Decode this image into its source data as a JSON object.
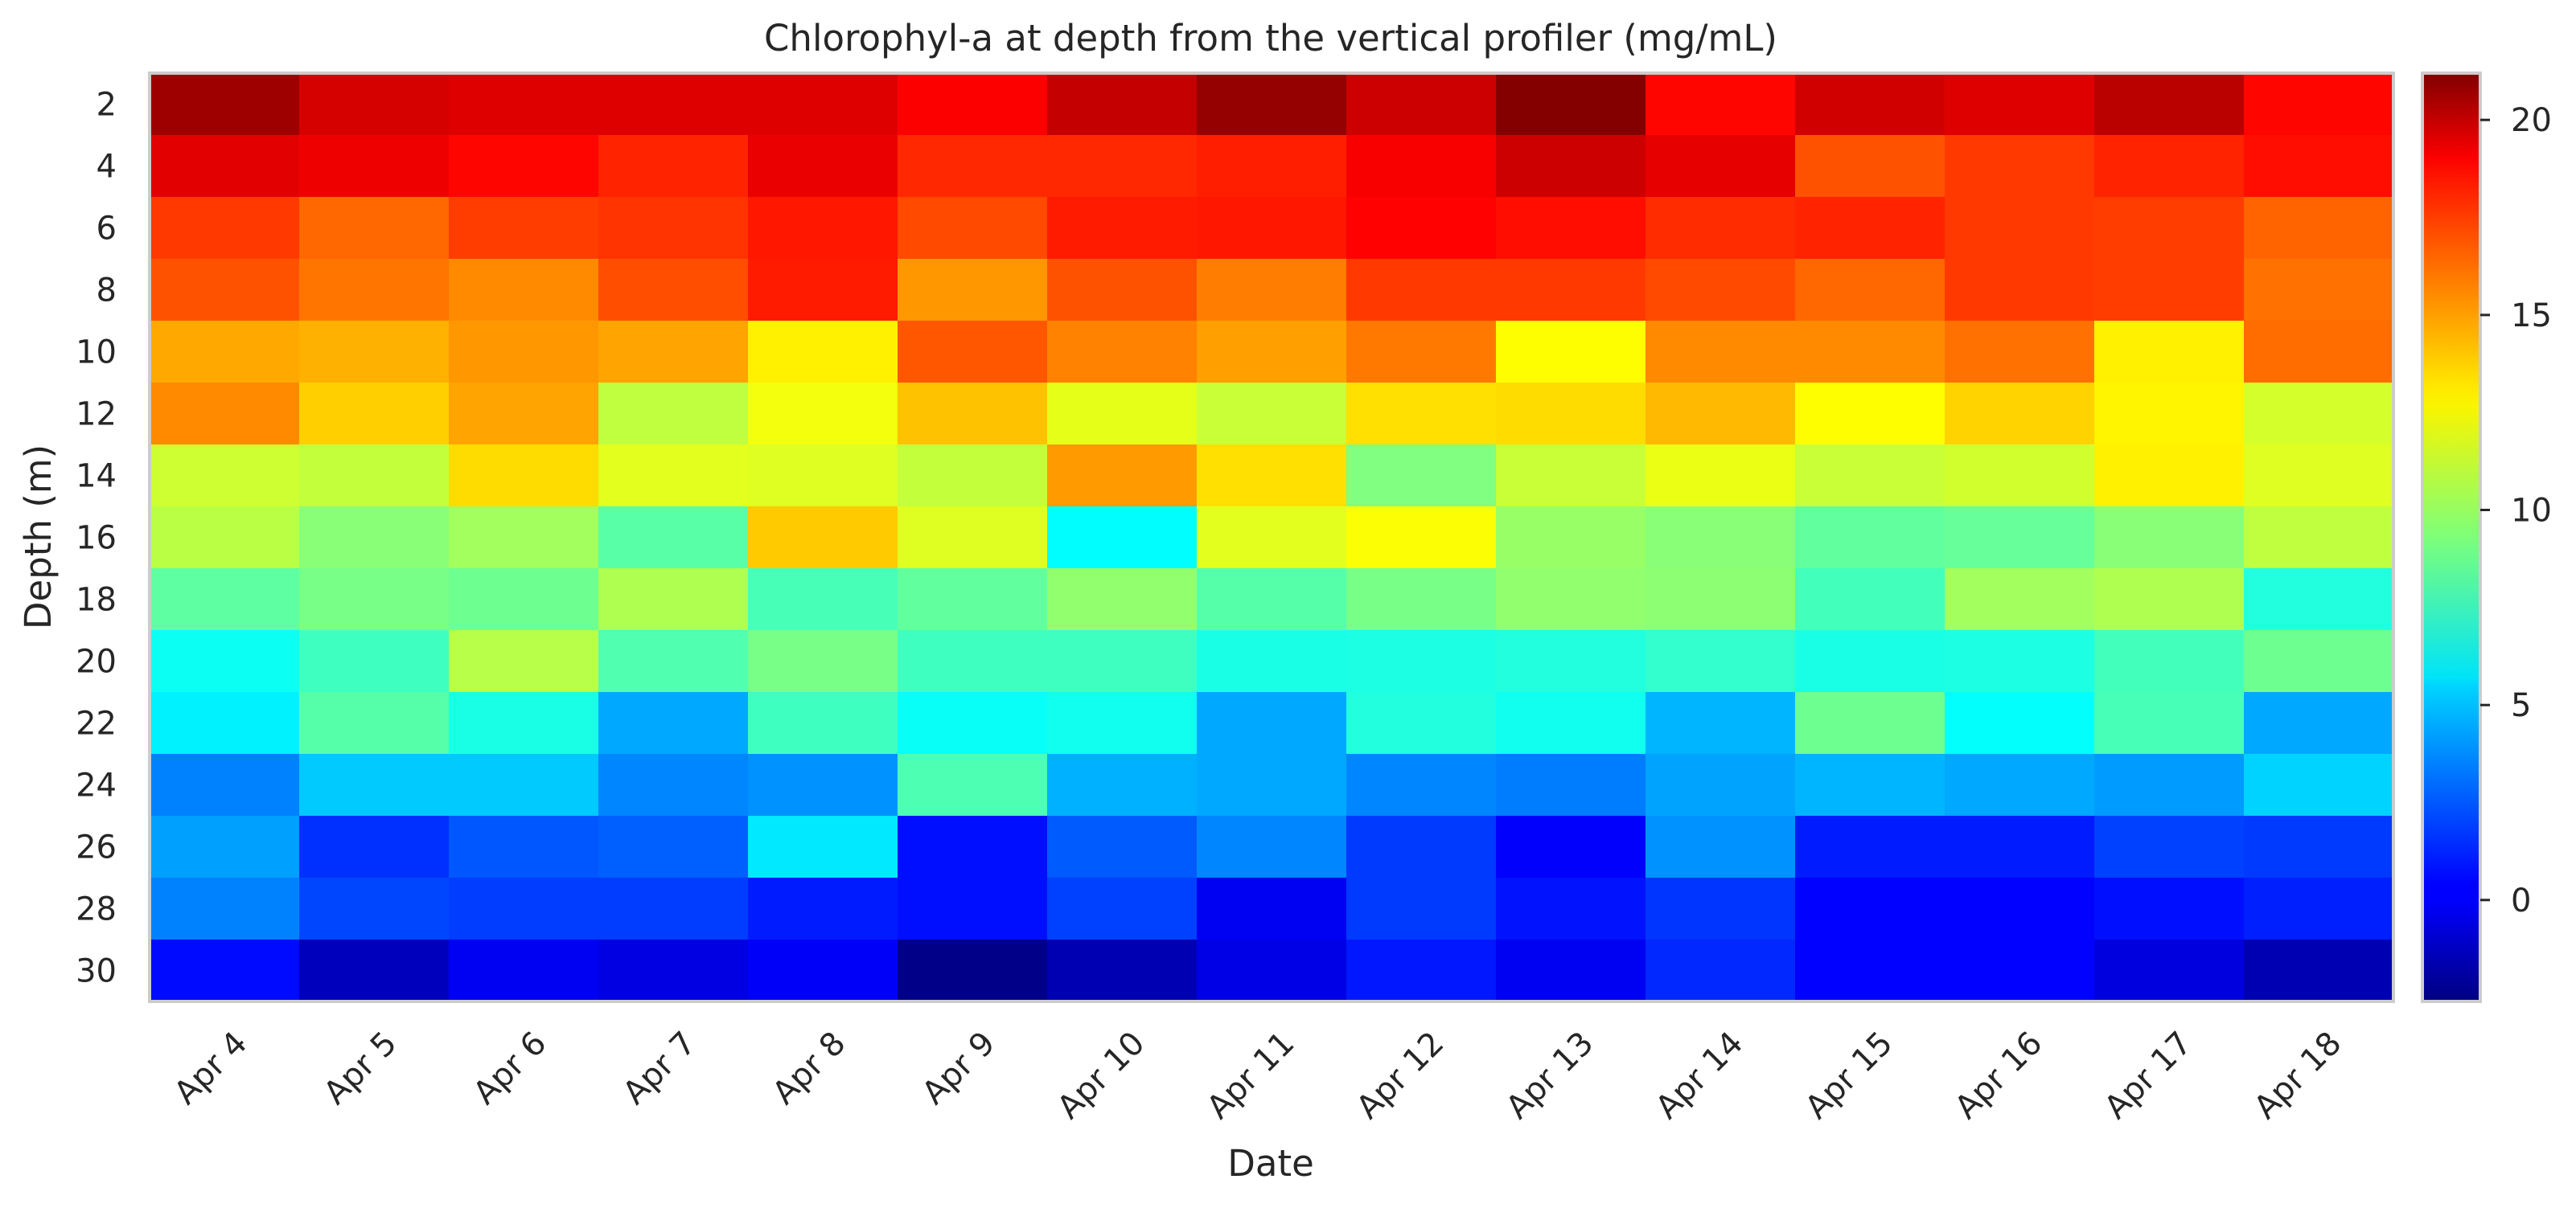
{
  "chart_data": {
    "type": "heatmap",
    "title": "Chlorophyl-a at depth from the vertical profiler (mg/mL)",
    "xlabel": "Date",
    "ylabel": "Depth (m)",
    "x": [
      "Apr 4",
      "Apr 5",
      "Apr 6",
      "Apr 7",
      "Apr 8",
      "Apr 9",
      "Apr 10",
      "Apr 11",
      "Apr 12",
      "Apr 13",
      "Apr 14",
      "Apr 15",
      "Apr 16",
      "Apr 17",
      "Apr 18"
    ],
    "y": [
      "2",
      "4",
      "6",
      "8",
      "10",
      "12",
      "14",
      "16",
      "18",
      "20",
      "22",
      "24",
      "26",
      "28",
      "30"
    ],
    "values": [
      [
        20.5,
        19.2,
        19.0,
        19.0,
        19.0,
        18.3,
        19.6,
        20.7,
        19.4,
        21.1,
        18.1,
        19.3,
        19.0,
        19.8,
        18.1
      ],
      [
        18.9,
        18.6,
        18.1,
        17.4,
        18.7,
        17.3,
        17.3,
        17.5,
        18.4,
        19.4,
        18.8,
        16.3,
        16.9,
        17.4,
        17.9
      ],
      [
        16.9,
        15.8,
        16.8,
        17.0,
        17.7,
        16.5,
        17.6,
        17.7,
        18.2,
        17.9,
        17.2,
        17.4,
        16.9,
        16.8,
        15.9
      ],
      [
        16.3,
        15.5,
        15.0,
        16.4,
        17.6,
        14.7,
        16.3,
        15.3,
        16.9,
        16.9,
        16.5,
        15.8,
        16.9,
        16.8,
        15.6
      ],
      [
        14.3,
        14.1,
        14.7,
        14.4,
        12.6,
        16.2,
        15.2,
        14.5,
        15.4,
        12.3,
        15.0,
        15.0,
        15.6,
        12.6,
        15.7
      ],
      [
        15.0,
        13.4,
        14.4,
        10.8,
        12.0,
        13.7,
        11.7,
        11.0,
        13.0,
        13.1,
        13.9,
        12.3,
        13.3,
        12.5,
        11.3
      ],
      [
        11.1,
        10.9,
        13.1,
        11.6,
        11.5,
        10.9,
        14.6,
        13.0,
        9.3,
        11.0,
        11.8,
        11.0,
        11.2,
        12.6,
        11.5
      ],
      [
        10.7,
        9.5,
        10.1,
        8.4,
        13.5,
        11.5,
        6.3,
        11.6,
        12.2,
        9.9,
        9.5,
        8.6,
        8.7,
        9.5,
        10.8
      ],
      [
        8.5,
        9.1,
        8.9,
        10.4,
        8.0,
        8.6,
        9.7,
        8.3,
        9.1,
        9.7,
        9.6,
        7.9,
        10.1,
        10.4,
        7.1
      ],
      [
        6.6,
        7.8,
        10.6,
        8.2,
        9.1,
        7.8,
        7.8,
        6.9,
        7.0,
        7.1,
        7.5,
        6.9,
        7.0,
        7.9,
        8.9
      ],
      [
        6.0,
        8.3,
        6.9,
        4.3,
        7.8,
        6.5,
        6.7,
        4.3,
        7.1,
        6.7,
        4.6,
        8.9,
        6.4,
        8.0,
        4.3
      ],
      [
        3.4,
        5.1,
        5.1,
        3.5,
        3.8,
        8.1,
        4.5,
        4.3,
        3.5,
        3.3,
        4.2,
        4.6,
        4.3,
        4.0,
        5.3
      ],
      [
        4.1,
        1.5,
        2.4,
        2.6,
        5.8,
        0.7,
        2.5,
        3.5,
        1.7,
        0.3,
        3.8,
        1.0,
        1.0,
        1.9,
        1.7
      ],
      [
        3.4,
        2.0,
        1.8,
        1.8,
        1.0,
        0.7,
        1.9,
        0.1,
        1.7,
        0.8,
        1.6,
        0.4,
        0.4,
        0.7,
        1.1
      ],
      [
        0.6,
        -1.2,
        0.1,
        -0.3,
        0.2,
        -2.4,
        -1.4,
        -0.2,
        0.9,
        0.1,
        1.3,
        0.4,
        0.4,
        -0.4,
        -1.4
      ]
    ],
    "colorbar": {
      "ticks": [
        0,
        5,
        10,
        15,
        20
      ],
      "vmin": -2.6,
      "vmax": 21.2,
      "colormap": "jet"
    }
  }
}
